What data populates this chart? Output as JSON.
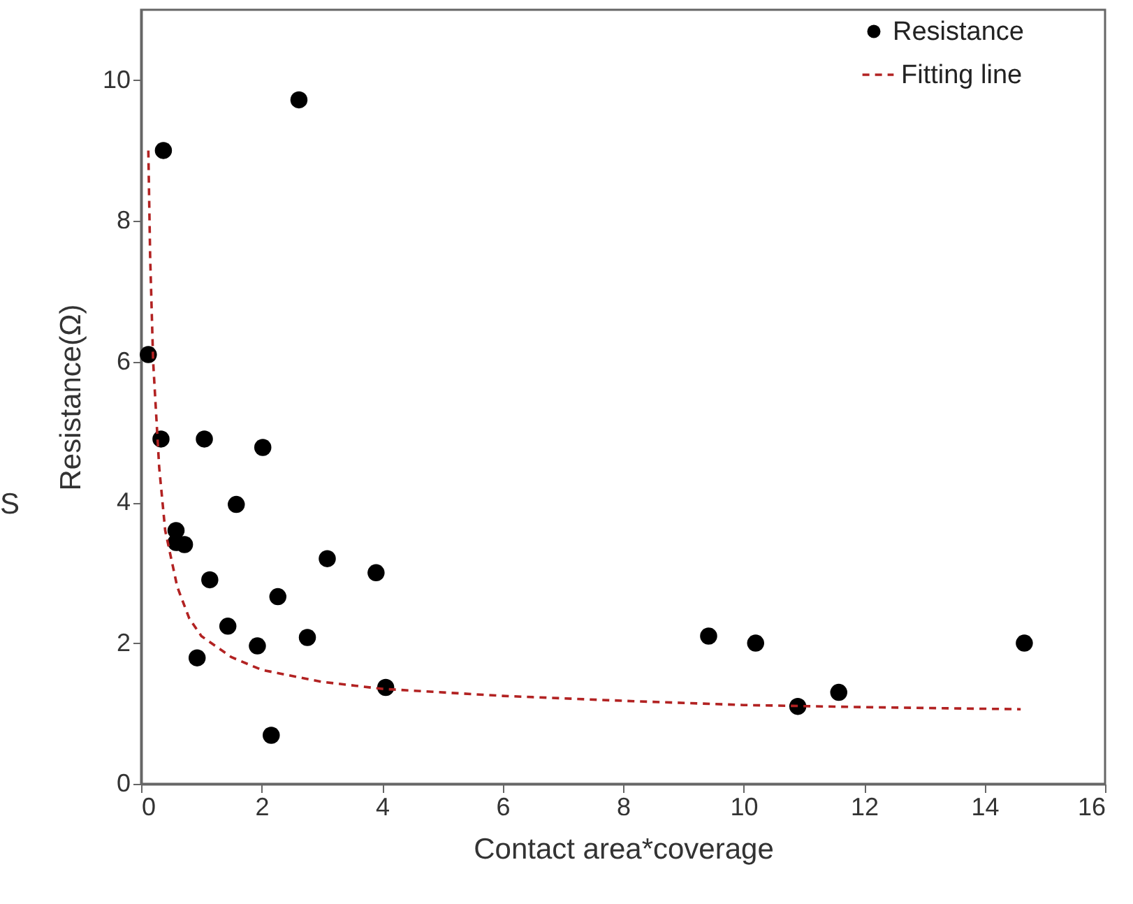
{
  "chart_data": {
    "type": "scatter",
    "xlabel": "Contact area*coverage",
    "ylabel": "Resistance(Ω)",
    "xlim": [
      0,
      16
    ],
    "ylim": [
      0,
      11
    ],
    "xticks": [
      0,
      2,
      4,
      6,
      8,
      10,
      12,
      14,
      16
    ],
    "yticks": [
      0,
      2,
      4,
      6,
      8,
      10
    ],
    "grid": false,
    "legend": "top right",
    "annotations": [
      "S"
    ],
    "series": [
      {
        "name": "Resistance",
        "marker": "circle",
        "color": "#000000",
        "x": [
          0.37,
          2.62,
          0.12,
          0.33,
          1.05,
          2.02,
          1.58,
          0.58,
          0.58,
          0.72,
          1.14,
          3.09,
          3.9,
          1.44,
          2.27,
          0.93,
          1.93,
          2.76,
          4.06,
          2.16,
          9.42,
          10.2,
          10.9,
          11.58,
          14.66
        ],
        "values": [
          9.0,
          9.72,
          6.1,
          4.9,
          4.9,
          4.78,
          3.97,
          3.6,
          3.43,
          3.4,
          2.9,
          3.2,
          3.0,
          2.24,
          2.66,
          1.79,
          1.96,
          2.08,
          1.37,
          0.69,
          2.1,
          2.0,
          1.1,
          1.3,
          2.0
        ]
      },
      {
        "name": "Fitting line",
        "type": "line",
        "line_style": "dashed",
        "color": "#b22222",
        "x": [
          0.12,
          0.15,
          0.2,
          0.3,
          0.4,
          0.6,
          0.8,
          1.0,
          1.5,
          2,
          3,
          4,
          6,
          8,
          10,
          12,
          14.6
        ],
        "values": [
          9.0,
          7.5,
          6.0,
          4.5,
          3.6,
          2.8,
          2.35,
          2.1,
          1.8,
          1.62,
          1.45,
          1.35,
          1.25,
          1.18,
          1.12,
          1.09,
          1.06
        ]
      }
    ]
  }
}
